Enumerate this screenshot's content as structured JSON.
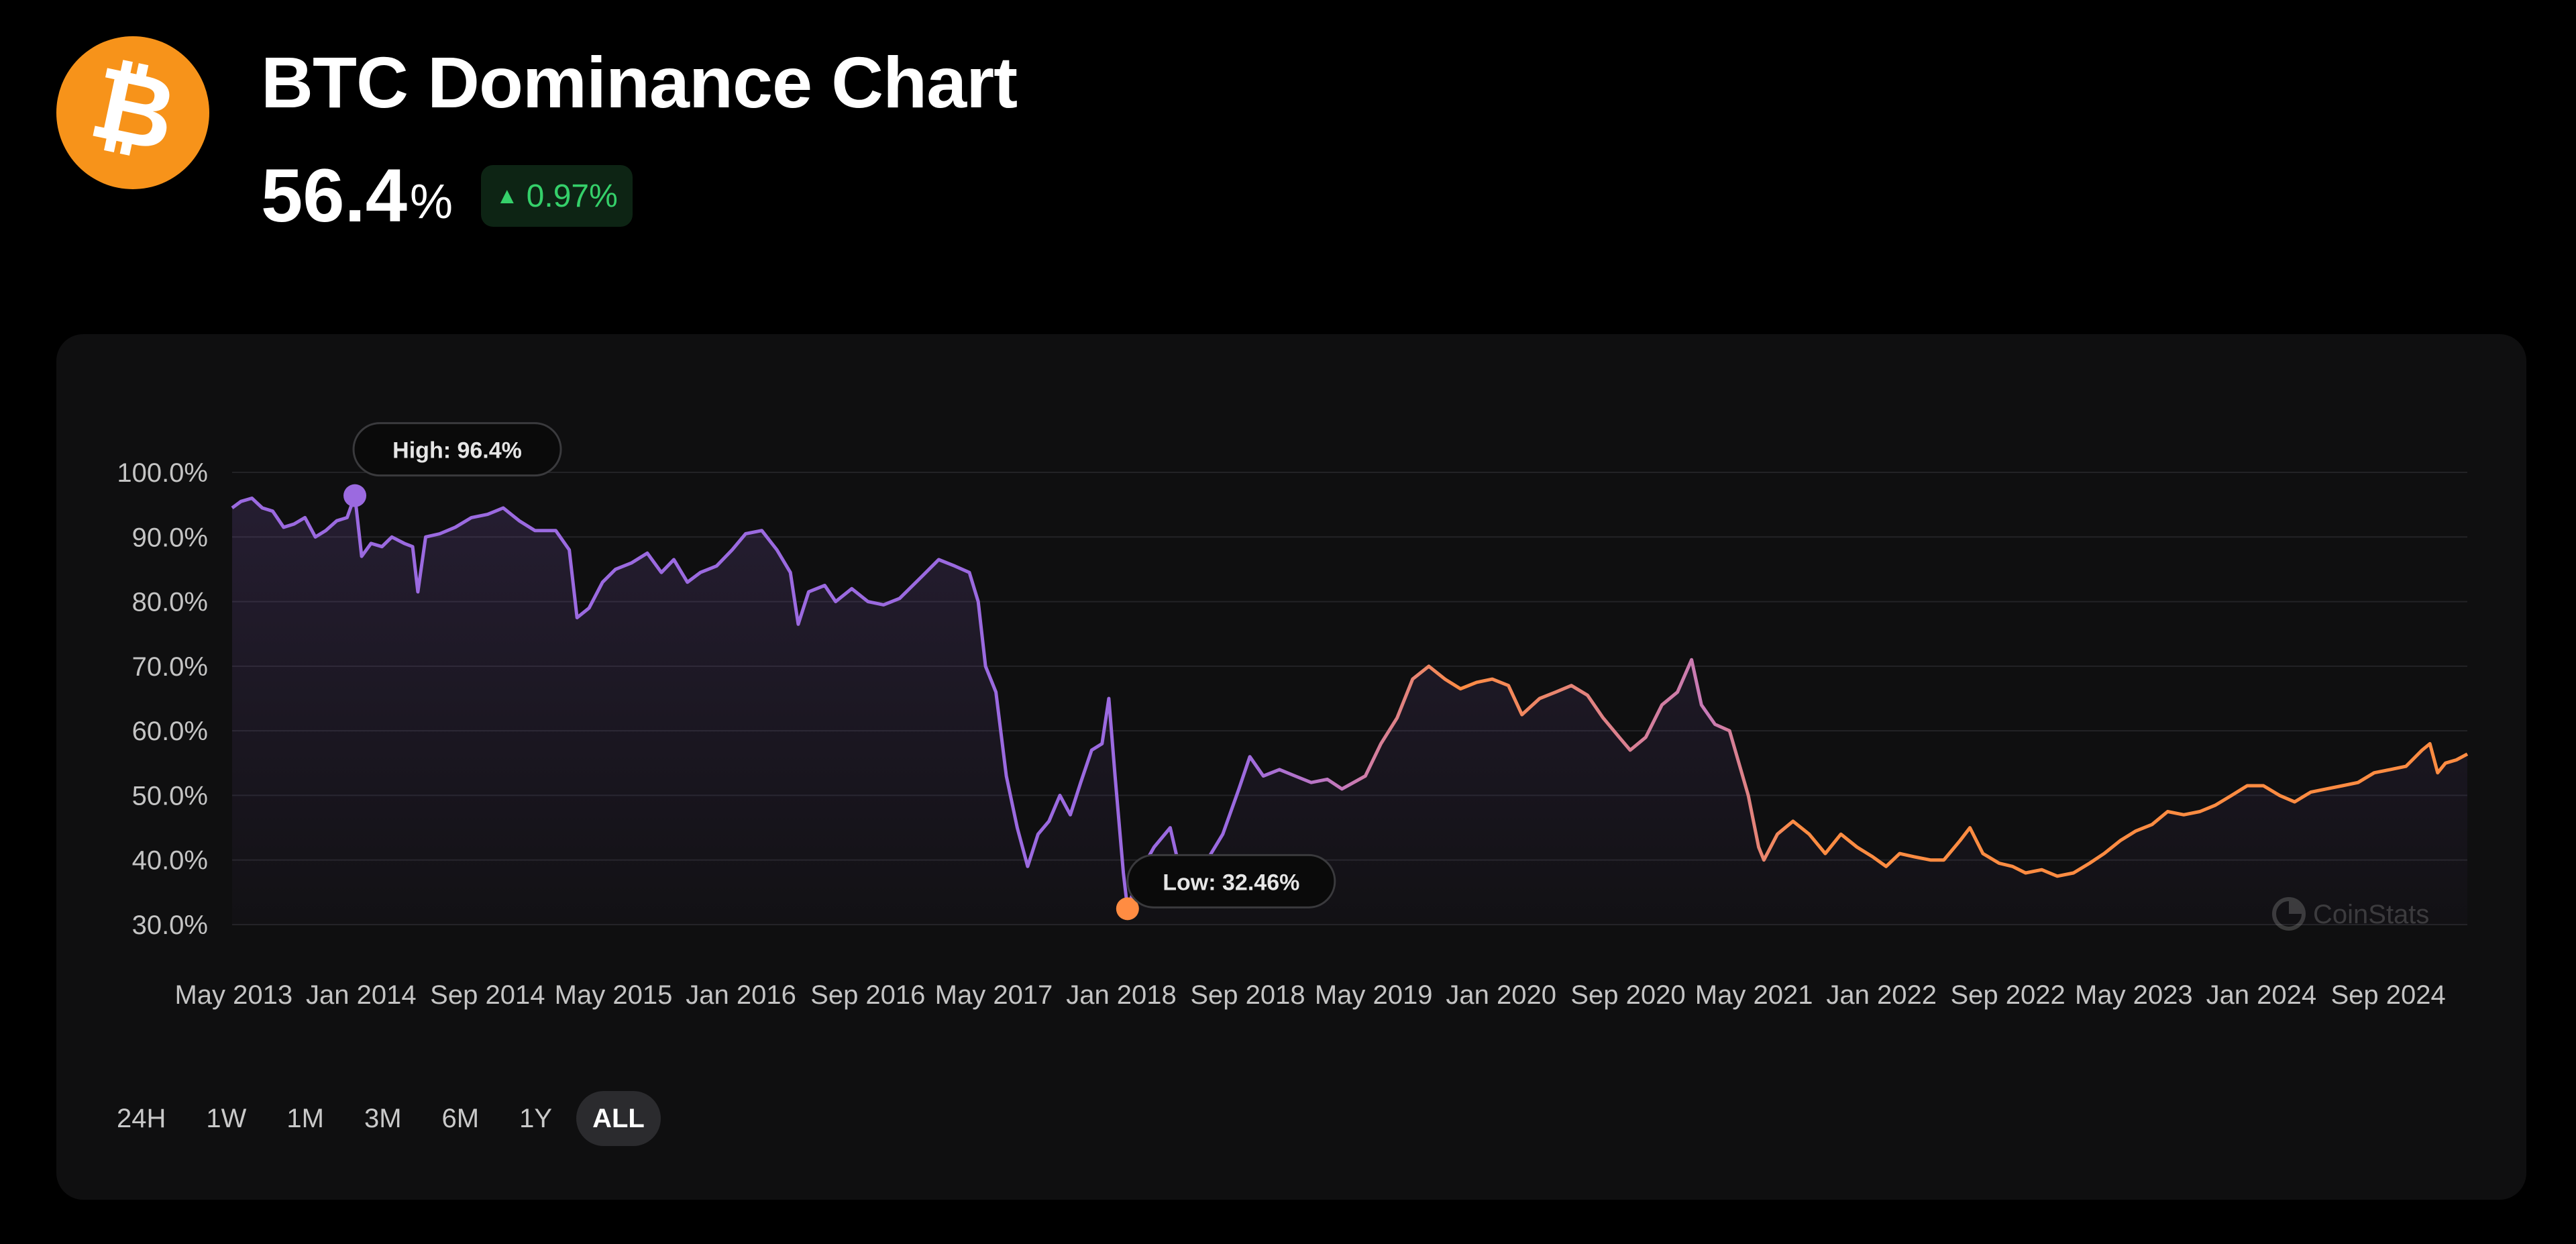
{
  "header": {
    "title": "BTC Dominance Chart",
    "value": "56.4",
    "unit": "%",
    "change": "0.97%",
    "change_direction": "up",
    "icon": "bitcoin-icon",
    "accent_color": "#f7931a",
    "positive_color": "#35d06a"
  },
  "ranges": {
    "options": [
      "24H",
      "1W",
      "1M",
      "3M",
      "6M",
      "1Y",
      "ALL"
    ],
    "selected": "ALL"
  },
  "watermark": "CoinStats",
  "chart_data": {
    "type": "area",
    "x_axis": "date",
    "y_unit": "%",
    "ylim": [
      30,
      100
    ],
    "yticks": [
      30,
      40,
      50,
      60,
      70,
      80,
      90,
      100
    ],
    "ytick_labels": [
      "30.0%",
      "40.0%",
      "50.0%",
      "60.0%",
      "70.0%",
      "80.0%",
      "90.0%",
      "100.0%"
    ],
    "xlim": [
      "2013-04-28",
      "2025-01-31"
    ],
    "xticks": [
      "2013-05-01",
      "2014-01-01",
      "2014-09-01",
      "2015-05-01",
      "2016-01-01",
      "2016-09-01",
      "2017-05-01",
      "2018-01-01",
      "2018-09-01",
      "2019-05-01",
      "2020-01-01",
      "2020-09-01",
      "2021-05-01",
      "2022-01-01",
      "2022-09-01",
      "2023-05-01",
      "2024-01-01",
      "2024-09-01"
    ],
    "xtick_labels": [
      "May 2013",
      "Jan 2014",
      "Sep 2014",
      "May 2015",
      "Jan 2016",
      "Sep 2016",
      "May 2017",
      "Jan 2018",
      "Sep 2018",
      "May 2019",
      "Jan 2020",
      "Sep 2020",
      "May 2021",
      "Jan 2022",
      "Sep 2022",
      "May 2023",
      "Jan 2024",
      "Sep 2024"
    ],
    "grid": true,
    "gradient_colors": [
      "#9b6ae0",
      "#c77ab8",
      "#ff8c42"
    ],
    "high": {
      "label": "High: 96.4%",
      "date": "2013-12-20",
      "value": 96.4,
      "color": "#9b6ae0"
    },
    "low": {
      "label": "Low: 32.46%",
      "date": "2018-01-13",
      "value": 32.46,
      "color": "#ff8c42"
    },
    "series": [
      {
        "points": [
          [
            "2013-04-28",
            94.5
          ],
          [
            "2013-05-15",
            95.5
          ],
          [
            "2013-06-05",
            96
          ],
          [
            "2013-06-25",
            94.5
          ],
          [
            "2013-07-15",
            94
          ],
          [
            "2013-08-05",
            91.5
          ],
          [
            "2013-08-25",
            92
          ],
          [
            "2013-09-15",
            93
          ],
          [
            "2013-10-05",
            90
          ],
          [
            "2013-10-25",
            91
          ],
          [
            "2013-11-15",
            92.5
          ],
          [
            "2013-12-05",
            93
          ],
          [
            "2013-12-20",
            96.4
          ],
          [
            "2014-01-02",
            87
          ],
          [
            "2014-01-20",
            89
          ],
          [
            "2014-02-10",
            88.5
          ],
          [
            "2014-03-01",
            90
          ],
          [
            "2014-03-25",
            89
          ],
          [
            "2014-04-10",
            88.5
          ],
          [
            "2014-04-20",
            81.5
          ],
          [
            "2014-05-05",
            90
          ],
          [
            "2014-06-01",
            90.5
          ],
          [
            "2014-07-01",
            91.5
          ],
          [
            "2014-08-01",
            93
          ],
          [
            "2014-09-01",
            93.5
          ],
          [
            "2014-10-01",
            94.5
          ],
          [
            "2014-11-01",
            92.5
          ],
          [
            "2014-12-01",
            91
          ],
          [
            "2015-01-10",
            91
          ],
          [
            "2015-02-05",
            88
          ],
          [
            "2015-02-20",
            77.5
          ],
          [
            "2015-03-15",
            79
          ],
          [
            "2015-04-10",
            83
          ],
          [
            "2015-05-05",
            85
          ],
          [
            "2015-06-05",
            86
          ],
          [
            "2015-07-05",
            87.5
          ],
          [
            "2015-08-01",
            84.5
          ],
          [
            "2015-08-25",
            86.5
          ],
          [
            "2015-09-20",
            83
          ],
          [
            "2015-10-15",
            84.5
          ],
          [
            "2015-11-15",
            85.5
          ],
          [
            "2015-12-15",
            88
          ],
          [
            "2016-01-10",
            90.5
          ],
          [
            "2016-02-10",
            91
          ],
          [
            "2016-03-10",
            88
          ],
          [
            "2016-04-05",
            84.5
          ],
          [
            "2016-04-20",
            76.5
          ],
          [
            "2016-05-10",
            81.5
          ],
          [
            "2016-06-10",
            82.5
          ],
          [
            "2016-07-01",
            80
          ],
          [
            "2016-08-01",
            82
          ],
          [
            "2016-09-01",
            80
          ],
          [
            "2016-10-01",
            79.5
          ],
          [
            "2016-11-01",
            80.5
          ],
          [
            "2016-12-15",
            84
          ],
          [
            "2017-01-15",
            86.5
          ],
          [
            "2017-02-15",
            85.5
          ],
          [
            "2017-03-15",
            84.5
          ],
          [
            "2017-04-01",
            80
          ],
          [
            "2017-04-15",
            70
          ],
          [
            "2017-05-05",
            66
          ],
          [
            "2017-05-25",
            53
          ],
          [
            "2017-06-15",
            45
          ],
          [
            "2017-07-05",
            39
          ],
          [
            "2017-07-25",
            44
          ],
          [
            "2017-08-15",
            46
          ],
          [
            "2017-09-05",
            50
          ],
          [
            "2017-09-25",
            47
          ],
          [
            "2017-10-15",
            52
          ],
          [
            "2017-11-05",
            57
          ],
          [
            "2017-11-25",
            58
          ],
          [
            "2017-12-08",
            65
          ],
          [
            "2017-12-20",
            53
          ],
          [
            "2018-01-05",
            38
          ],
          [
            "2018-01-13",
            32.46
          ],
          [
            "2018-02-05",
            38
          ],
          [
            "2018-03-05",
            42
          ],
          [
            "2018-04-05",
            45
          ],
          [
            "2018-04-25",
            38
          ],
          [
            "2018-05-20",
            36.5
          ],
          [
            "2018-06-15",
            40
          ],
          [
            "2018-07-15",
            44
          ],
          [
            "2018-08-15",
            51
          ],
          [
            "2018-09-05",
            56
          ],
          [
            "2018-10-01",
            53
          ],
          [
            "2018-11-01",
            54
          ],
          [
            "2018-12-01",
            53
          ],
          [
            "2019-01-01",
            52
          ],
          [
            "2019-02-01",
            52.5
          ],
          [
            "2019-03-01",
            51
          ],
          [
            "2019-04-15",
            53
          ],
          [
            "2019-05-15",
            58
          ],
          [
            "2019-06-15",
            62
          ],
          [
            "2019-07-15",
            68
          ],
          [
            "2019-08-15",
            70
          ],
          [
            "2019-09-15",
            68
          ],
          [
            "2019-10-15",
            66.5
          ],
          [
            "2019-11-15",
            67.5
          ],
          [
            "2019-12-15",
            68
          ],
          [
            "2020-01-15",
            67
          ],
          [
            "2020-02-10",
            62.5
          ],
          [
            "2020-03-15",
            65
          ],
          [
            "2020-04-15",
            66
          ],
          [
            "2020-05-15",
            67
          ],
          [
            "2020-06-15",
            65.5
          ],
          [
            "2020-07-15",
            62
          ],
          [
            "2020-08-15",
            59
          ],
          [
            "2020-09-05",
            57
          ],
          [
            "2020-10-05",
            59
          ],
          [
            "2020-11-05",
            64
          ],
          [
            "2020-12-05",
            66
          ],
          [
            "2021-01-01",
            71
          ],
          [
            "2021-01-20",
            64
          ],
          [
            "2021-02-15",
            61
          ],
          [
            "2021-03-15",
            60
          ],
          [
            "2021-04-20",
            50
          ],
          [
            "2021-05-10",
            42
          ],
          [
            "2021-05-20",
            40
          ],
          [
            "2021-06-15",
            44
          ],
          [
            "2021-07-15",
            46
          ],
          [
            "2021-08-15",
            44
          ],
          [
            "2021-09-15",
            41
          ],
          [
            "2021-10-15",
            44
          ],
          [
            "2021-11-15",
            42
          ],
          [
            "2021-12-15",
            40.5
          ],
          [
            "2022-01-10",
            39
          ],
          [
            "2022-02-05",
            41
          ],
          [
            "2022-03-05",
            40.5
          ],
          [
            "2022-04-05",
            40
          ],
          [
            "2022-05-01",
            40
          ],
          [
            "2022-06-01",
            43
          ],
          [
            "2022-06-20",
            45
          ],
          [
            "2022-07-15",
            41
          ],
          [
            "2022-08-15",
            39.5
          ],
          [
            "2022-09-10",
            39
          ],
          [
            "2022-10-05",
            38
          ],
          [
            "2022-11-05",
            38.5
          ],
          [
            "2022-12-05",
            37.5
          ],
          [
            "2023-01-05",
            38
          ],
          [
            "2023-02-05",
            39.5
          ],
          [
            "2023-03-05",
            41
          ],
          [
            "2023-04-05",
            43
          ],
          [
            "2023-05-05",
            44.5
          ],
          [
            "2023-06-05",
            45.5
          ],
          [
            "2023-07-05",
            47.5
          ],
          [
            "2023-08-05",
            47
          ],
          [
            "2023-09-05",
            47.5
          ],
          [
            "2023-10-05",
            48.5
          ],
          [
            "2023-11-05",
            50
          ],
          [
            "2023-12-05",
            51.5
          ],
          [
            "2024-01-05",
            51.5
          ],
          [
            "2024-02-05",
            50
          ],
          [
            "2024-03-05",
            49
          ],
          [
            "2024-04-05",
            50.5
          ],
          [
            "2024-05-05",
            51
          ],
          [
            "2024-06-05",
            51.5
          ],
          [
            "2024-07-05",
            52
          ],
          [
            "2024-08-05",
            53.5
          ],
          [
            "2024-09-05",
            54
          ],
          [
            "2024-10-05",
            54.5
          ],
          [
            "2024-11-05",
            57
          ],
          [
            "2024-11-20",
            58
          ],
          [
            "2024-12-05",
            53.5
          ],
          [
            "2024-12-20",
            55
          ],
          [
            "2025-01-10",
            55.5
          ],
          [
            "2025-01-31",
            56.4
          ]
        ]
      }
    ]
  }
}
